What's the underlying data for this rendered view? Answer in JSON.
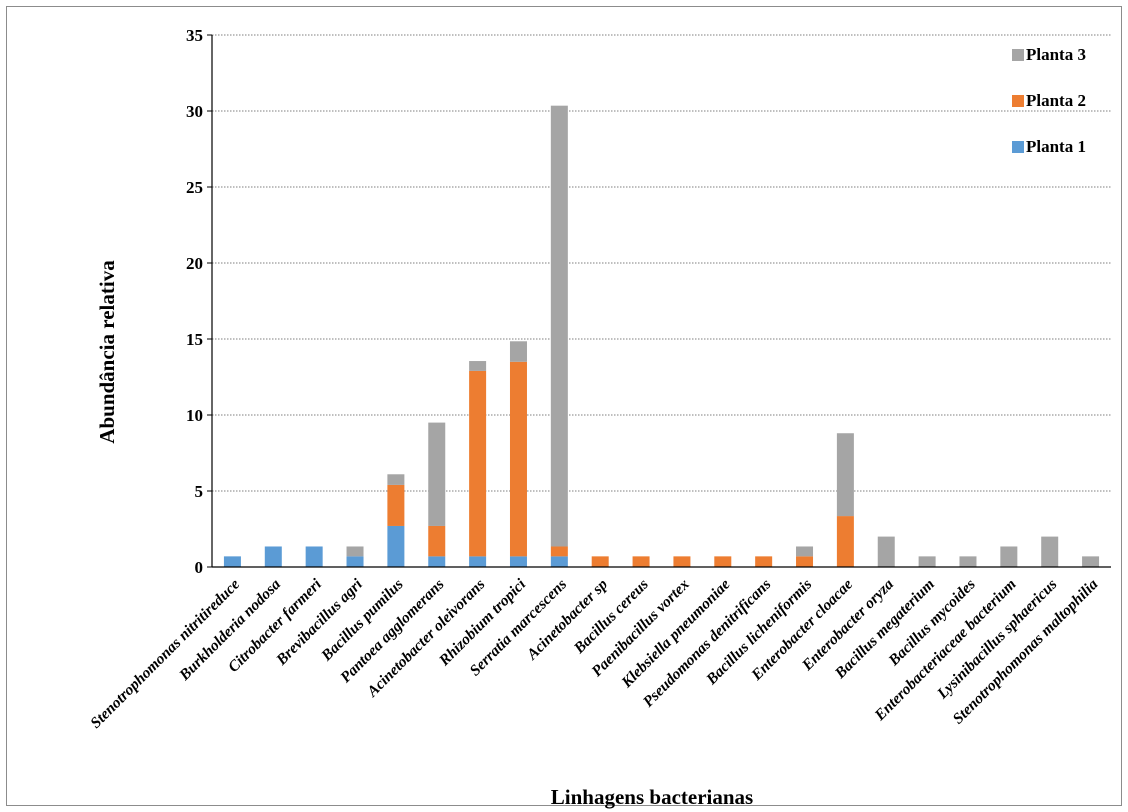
{
  "chart_data": {
    "type": "bar",
    "stacked": true,
    "title": "",
    "xlabel": "Linhagens bacterianas",
    "ylabel": "Abundância relativa",
    "ylim": [
      0,
      35
    ],
    "yticks": [
      0,
      5,
      10,
      15,
      20,
      25,
      30,
      35
    ],
    "grid": "horizontal-dotted",
    "legend_position": "top-right",
    "categories": [
      "Stenotrophomonas nitritireduce",
      "Burkholderia nodosa",
      "Citrobacter farmeri",
      "Brevibacillus agri",
      "Bacillus pumilus",
      "Pantoea agglomerans",
      "Acinetobacter oleivorans",
      "Rhizobium tropici",
      "Serratia marcescens",
      "Acinetobacter sp",
      "Bacillus cereus",
      "Paenibacillus vortex",
      "Klebsiella pneumoniae",
      "Pseudomonas denitrificans",
      "Bacillus licheniformis",
      "Enterobacter cloacae",
      "Enterobacter oryza",
      "Bacillus megaterium",
      "Bacillus mycoides",
      "Enterobacteriaceae bacterium",
      "Lysinibacillus sphaericus",
      "Stenotrophomonas maltophilia"
    ],
    "series": [
      {
        "name": "Planta 1",
        "color": "#5b9bd5",
        "values": [
          0.7,
          1.35,
          1.35,
          0.7,
          2.7,
          0.7,
          0.7,
          0.7,
          0.7,
          0,
          0,
          0,
          0,
          0,
          0,
          0,
          0,
          0,
          0,
          0,
          0,
          0
        ]
      },
      {
        "name": "Planta 2",
        "color": "#ed7d31",
        "values": [
          0,
          0,
          0,
          0,
          2.7,
          2.0,
          12.2,
          12.8,
          0.65,
          0.7,
          0.7,
          0.7,
          0.7,
          0.7,
          0.7,
          3.35,
          0,
          0,
          0,
          0,
          0,
          0
        ]
      },
      {
        "name": "Planta 3",
        "color": "#a5a5a5",
        "values": [
          0,
          0,
          0,
          0.65,
          0.7,
          6.8,
          0.65,
          1.35,
          29.0,
          0,
          0,
          0,
          0,
          0,
          0.65,
          5.45,
          2.0,
          0.7,
          0.7,
          1.35,
          2.0,
          0.7
        ]
      }
    ]
  }
}
